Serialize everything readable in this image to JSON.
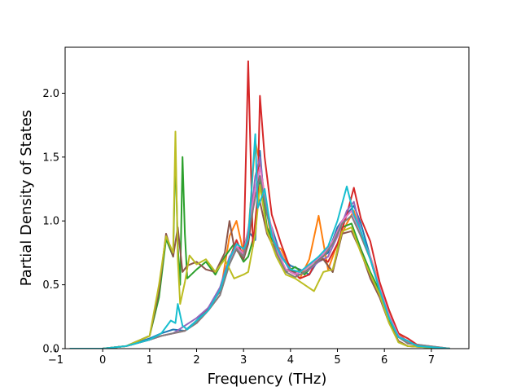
{
  "chart_data": {
    "type": "line",
    "title": "",
    "xlabel": "Frequency (THz)",
    "ylabel": "Partial Density of States",
    "xlim": [
      -0.8,
      7.8
    ],
    "ylim": [
      0.0,
      2.36
    ],
    "xticks": [
      -1,
      0,
      1,
      2,
      3,
      4,
      5,
      6,
      7
    ],
    "yticks": [
      0.0,
      0.5,
      1.0,
      1.5,
      2.0
    ],
    "xtick_labels": [
      "−1",
      "0",
      "1",
      "2",
      "3",
      "4",
      "5",
      "6",
      "7"
    ],
    "ytick_labels": [
      "0.0",
      "0.5",
      "1.0",
      "1.5",
      "2.0"
    ],
    "grid": false,
    "legend": "none",
    "series": [
      {
        "color": "#1f77b4",
        "x": [
          -0.7,
          0.0,
          0.5,
          1.0,
          1.25,
          1.5,
          1.75,
          2.0,
          2.25,
          2.5,
          2.7,
          2.85,
          3.0,
          3.1,
          3.25,
          3.35,
          3.45,
          3.6,
          3.8,
          4.0,
          4.2,
          4.4,
          4.6,
          4.8,
          5.0,
          5.2,
          5.35,
          5.5,
          5.7,
          5.9,
          6.1,
          6.3,
          6.5,
          6.7,
          7.4
        ],
        "y": [
          0,
          0,
          0.02,
          0.08,
          0.12,
          0.15,
          0.14,
          0.22,
          0.32,
          0.45,
          0.68,
          0.82,
          0.78,
          0.92,
          0.85,
          1.55,
          1.1,
          0.95,
          0.72,
          0.65,
          0.62,
          0.58,
          0.7,
          0.75,
          0.95,
          1.05,
          1.12,
          0.98,
          0.72,
          0.48,
          0.25,
          0.1,
          0.06,
          0.02,
          0
        ]
      },
      {
        "color": "#ff7f0e",
        "x": [
          -0.7,
          0.0,
          0.5,
          1.0,
          1.25,
          1.5,
          1.75,
          2.0,
          2.25,
          2.5,
          2.7,
          2.85,
          3.0,
          3.1,
          3.25,
          3.35,
          3.45,
          3.6,
          3.8,
          4.0,
          4.2,
          4.4,
          4.6,
          4.8,
          5.0,
          5.2,
          5.35,
          5.5,
          5.7,
          5.9,
          6.1,
          6.3,
          6.5,
          6.7,
          7.4
        ],
        "y": [
          0,
          0,
          0.02,
          0.07,
          0.1,
          0.12,
          0.14,
          0.2,
          0.3,
          0.42,
          0.88,
          1.0,
          0.75,
          0.9,
          1.62,
          1.45,
          1.2,
          0.82,
          0.78,
          0.62,
          0.55,
          0.7,
          1.04,
          0.62,
          0.82,
          0.98,
          1.08,
          0.88,
          0.72,
          0.5,
          0.3,
          0.12,
          0.05,
          0.02,
          0
        ]
      },
      {
        "color": "#2ca02c",
        "x": [
          -0.7,
          0.0,
          0.5,
          1.0,
          1.2,
          1.35,
          1.5,
          1.55,
          1.6,
          1.65,
          1.7,
          1.75,
          1.8,
          2.0,
          2.2,
          2.4,
          2.6,
          2.8,
          3.0,
          3.1,
          3.25,
          3.35,
          3.5,
          3.7,
          3.9,
          4.1,
          4.3,
          4.5,
          4.7,
          4.9,
          5.1,
          5.3,
          5.5,
          5.7,
          5.9,
          6.1,
          6.3,
          6.5,
          7.4
        ],
        "y": [
          0,
          0,
          0.02,
          0.1,
          0.4,
          0.86,
          0.72,
          1.55,
          0.8,
          0.5,
          1.5,
          0.9,
          0.55,
          0.62,
          0.68,
          0.58,
          0.72,
          0.82,
          0.68,
          0.72,
          0.92,
          1.35,
          0.95,
          0.78,
          0.6,
          0.64,
          0.58,
          0.66,
          0.7,
          0.6,
          0.95,
          0.98,
          0.78,
          0.6,
          0.45,
          0.22,
          0.05,
          0.02,
          0
        ]
      },
      {
        "color": "#d62728",
        "x": [
          -0.7,
          0.0,
          0.5,
          1.0,
          1.25,
          1.5,
          1.75,
          2.0,
          2.25,
          2.5,
          2.7,
          2.85,
          3.0,
          3.1,
          3.2,
          3.3,
          3.35,
          3.45,
          3.6,
          3.8,
          4.0,
          4.2,
          4.4,
          4.6,
          4.8,
          5.0,
          5.2,
          5.35,
          5.5,
          5.7,
          5.9,
          6.1,
          6.3,
          6.5,
          6.7,
          7.4
        ],
        "y": [
          0,
          0,
          0.02,
          0.07,
          0.1,
          0.12,
          0.14,
          0.2,
          0.32,
          0.45,
          0.7,
          0.85,
          0.72,
          2.25,
          0.8,
          1.2,
          1.98,
          1.5,
          1.05,
          0.82,
          0.62,
          0.55,
          0.58,
          0.72,
          0.68,
          0.82,
          1.05,
          1.26,
          1.02,
          0.84,
          0.52,
          0.3,
          0.12,
          0.08,
          0.03,
          0
        ]
      },
      {
        "color": "#9467bd",
        "x": [
          -0.7,
          0.0,
          0.5,
          1.0,
          1.25,
          1.5,
          1.75,
          2.0,
          2.25,
          2.5,
          2.7,
          2.85,
          3.0,
          3.1,
          3.25,
          3.35,
          3.45,
          3.6,
          3.8,
          4.0,
          4.2,
          4.4,
          4.6,
          4.8,
          5.0,
          5.2,
          5.35,
          5.5,
          5.7,
          5.9,
          6.1,
          6.3,
          6.5,
          6.7,
          7.4
        ],
        "y": [
          0,
          0,
          0.02,
          0.07,
          0.1,
          0.12,
          0.18,
          0.24,
          0.32,
          0.48,
          0.72,
          0.8,
          0.74,
          0.85,
          1.35,
          1.5,
          1.15,
          0.9,
          0.74,
          0.6,
          0.58,
          0.62,
          0.68,
          0.72,
          0.88,
          1.08,
          1.15,
          0.92,
          0.7,
          0.46,
          0.26,
          0.1,
          0.06,
          0.02,
          0
        ]
      },
      {
        "color": "#8c564b",
        "x": [
          -0.7,
          0.0,
          0.5,
          1.0,
          1.2,
          1.35,
          1.5,
          1.6,
          1.7,
          1.8,
          2.0,
          2.2,
          2.4,
          2.6,
          2.7,
          2.8,
          3.0,
          3.1,
          3.25,
          3.35,
          3.5,
          3.7,
          3.9,
          4.1,
          4.3,
          4.5,
          4.7,
          4.9,
          5.1,
          5.3,
          5.5,
          5.7,
          5.9,
          6.1,
          6.3,
          6.5,
          7.4
        ],
        "y": [
          0,
          0,
          0.02,
          0.1,
          0.45,
          0.9,
          0.72,
          0.95,
          0.6,
          0.65,
          0.68,
          0.62,
          0.6,
          0.75,
          1.0,
          0.8,
          0.7,
          0.82,
          1.22,
          1.15,
          0.9,
          0.75,
          0.62,
          0.6,
          0.62,
          0.68,
          0.7,
          0.6,
          0.9,
          0.92,
          0.76,
          0.55,
          0.4,
          0.2,
          0.06,
          0.02,
          0
        ]
      },
      {
        "color": "#e377c2",
        "x": [
          -0.7,
          0.0,
          0.5,
          1.0,
          1.25,
          1.5,
          1.75,
          2.0,
          2.25,
          2.5,
          2.7,
          2.85,
          3.0,
          3.25,
          3.35,
          3.5,
          3.7,
          3.9,
          4.1,
          4.3,
          4.5,
          4.7,
          4.9,
          5.1,
          5.3,
          5.5,
          5.7,
          5.9,
          6.1,
          6.3,
          6.5,
          7.4
        ],
        "y": [
          0,
          0,
          0.02,
          0.07,
          0.1,
          0.12,
          0.14,
          0.2,
          0.3,
          0.42,
          0.68,
          0.8,
          0.74,
          1.25,
          1.42,
          1.1,
          0.78,
          0.62,
          0.58,
          0.62,
          0.68,
          0.74,
          0.84,
          1.0,
          1.08,
          0.9,
          0.72,
          0.48,
          0.26,
          0.1,
          0.04,
          0
        ]
      },
      {
        "color": "#7f7f7f",
        "x": [
          -0.7,
          0.0,
          0.5,
          1.0,
          1.25,
          1.5,
          1.75,
          2.0,
          2.25,
          2.5,
          2.7,
          2.85,
          3.0,
          3.25,
          3.35,
          3.5,
          3.7,
          3.9,
          4.1,
          4.3,
          4.5,
          4.7,
          4.9,
          5.1,
          5.3,
          5.5,
          5.7,
          5.9,
          6.1,
          6.3,
          6.5,
          7.4
        ],
        "y": [
          0,
          0,
          0.02,
          0.07,
          0.1,
          0.12,
          0.14,
          0.2,
          0.3,
          0.42,
          0.66,
          0.78,
          0.72,
          1.18,
          1.35,
          1.05,
          0.75,
          0.6,
          0.56,
          0.6,
          0.66,
          0.72,
          0.82,
          0.98,
          1.04,
          0.88,
          0.7,
          0.46,
          0.24,
          0.09,
          0.04,
          0
        ]
      },
      {
        "color": "#bcbd22",
        "x": [
          -0.7,
          0.0,
          0.5,
          1.0,
          1.2,
          1.35,
          1.5,
          1.55,
          1.6,
          1.65,
          1.75,
          1.85,
          2.0,
          2.2,
          2.4,
          2.6,
          2.8,
          3.0,
          3.1,
          3.25,
          3.35,
          3.5,
          3.7,
          3.9,
          4.1,
          4.3,
          4.5,
          4.7,
          4.9,
          5.1,
          5.3,
          5.5,
          5.7,
          5.9,
          6.1,
          6.3,
          6.5,
          7.4
        ],
        "y": [
          0,
          0,
          0.02,
          0.1,
          0.5,
          0.88,
          0.75,
          1.7,
          0.7,
          0.35,
          0.52,
          0.73,
          0.66,
          0.7,
          0.6,
          0.7,
          0.55,
          0.58,
          0.6,
          0.9,
          1.28,
          0.92,
          0.72,
          0.58,
          0.55,
          0.5,
          0.45,
          0.6,
          0.62,
          0.92,
          0.95,
          0.75,
          0.58,
          0.42,
          0.2,
          0.05,
          0.02,
          0
        ]
      },
      {
        "color": "#17becf",
        "x": [
          -0.7,
          0.0,
          0.5,
          1.0,
          1.25,
          1.45,
          1.55,
          1.6,
          1.7,
          1.8,
          2.0,
          2.25,
          2.5,
          2.7,
          2.85,
          3.0,
          3.1,
          3.25,
          3.3,
          3.45,
          3.6,
          3.8,
          4.0,
          4.2,
          4.4,
          4.6,
          4.8,
          5.0,
          5.2,
          5.35,
          5.5,
          5.7,
          5.9,
          6.1,
          6.3,
          6.5,
          6.7,
          7.4
        ],
        "y": [
          0,
          0,
          0.02,
          0.07,
          0.12,
          0.22,
          0.2,
          0.35,
          0.18,
          0.15,
          0.22,
          0.3,
          0.46,
          0.7,
          0.82,
          0.78,
          0.86,
          1.68,
          1.1,
          1.25,
          0.88,
          0.72,
          0.62,
          0.6,
          0.66,
          0.72,
          0.8,
          1.0,
          1.27,
          1.05,
          0.92,
          0.7,
          0.46,
          0.24,
          0.09,
          0.06,
          0.02,
          0
        ]
      }
    ]
  }
}
